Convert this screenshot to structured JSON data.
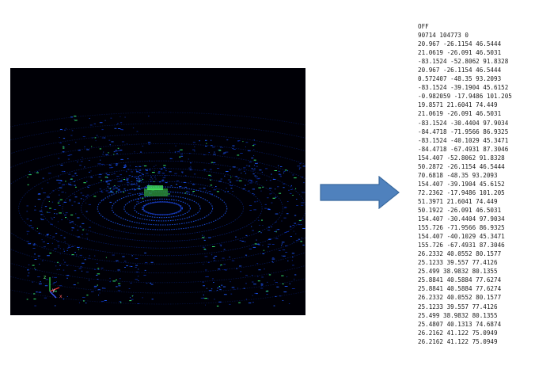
{
  "image": {
    "description_icon": "lidar-point-cloud-icon",
    "axis_labels": [
      "x",
      "y",
      "z"
    ],
    "colors": {
      "background": "#000006",
      "points_low": "#0a2a9a",
      "points_mid": "#1e5aff",
      "points_high": "#3cff7a"
    }
  },
  "arrow": {
    "icon": "right-arrow-icon",
    "fill": "#4f81bd",
    "stroke": "#3a6a9f"
  },
  "off_file": {
    "lines": [
      "OFF",
      "90714 104773 0",
      "20.967 -26.1154 46.5444",
      "21.0619 -26.091 46.5031",
      "-83.1524 -52.8062 91.8328",
      "20.967 -26.1154 46.5444",
      "0.572407 -48.35 93.2093",
      "-83.1524 -39.1904 45.6152",
      "-0.982059 -17.9486 101.205",
      "19.8571 21.6041 74.449",
      "21.0619 -26.091 46.5031",
      "-83.1524 -30.4404 97.9034",
      "-84.4718 -71.9566 86.9325",
      "-83.1524 -40.1029 45.3471",
      "-84.4718 -67.4931 87.3046",
      "154.407 -52.8062 91.8328",
      "50.2872 -26.1154 46.5444",
      "70.6818 -48.35 93.2093",
      "154.407 -39.1904 45.6152",
      "72.2362 -17.9486 101.205",
      "51.3971 21.6041 74.449",
      "50.1922 -26.091 46.5031",
      "154.407 -30.4404 97.9034",
      "155.726 -71.9566 86.9325",
      "154.407 -40.1029 45.3471",
      "155.726 -67.4931 87.3046",
      "26.2332 40.0552 80.1577",
      "25.1233 39.557 77.4126",
      "25.499 38.9832 80.1355",
      "25.8841 40.5884 77.6274",
      "25.8841 40.5884 77.6274",
      "26.2332 40.0552 80.1577",
      "25.1233 39.557 77.4126",
      "25.499 38.9832 80.1355",
      "25.4807 40.1313 74.6874",
      "26.2162 41.122 75.0949",
      "26.2162 41.122 75.0949"
    ]
  }
}
